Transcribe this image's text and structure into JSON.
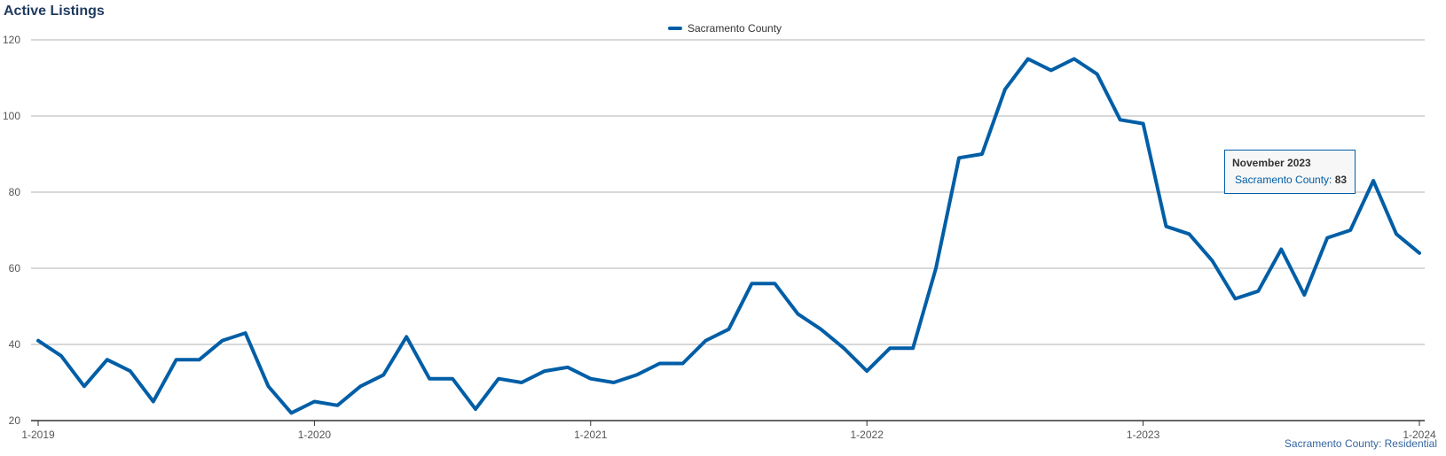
{
  "chart_data": {
    "type": "line",
    "title": "Active Listings",
    "xlabel": "",
    "ylabel": "",
    "ylim": [
      20,
      120
    ],
    "yticks": [
      20,
      40,
      60,
      80,
      100,
      120
    ],
    "x_tick_labels": [
      "1-2019",
      "1-2020",
      "1-2021",
      "1-2022",
      "1-2023",
      "1-2024"
    ],
    "grid": true,
    "legend_position": "top-center",
    "x": [
      "1-2019",
      "2-2019",
      "3-2019",
      "4-2019",
      "5-2019",
      "6-2019",
      "7-2019",
      "8-2019",
      "9-2019",
      "10-2019",
      "11-2019",
      "12-2019",
      "1-2020",
      "2-2020",
      "3-2020",
      "4-2020",
      "5-2020",
      "6-2020",
      "7-2020",
      "8-2020",
      "9-2020",
      "10-2020",
      "11-2020",
      "12-2020",
      "1-2021",
      "2-2021",
      "3-2021",
      "4-2021",
      "5-2021",
      "6-2021",
      "7-2021",
      "8-2021",
      "9-2021",
      "10-2021",
      "11-2021",
      "12-2021",
      "1-2022",
      "2-2022",
      "3-2022",
      "4-2022",
      "5-2022",
      "6-2022",
      "7-2022",
      "8-2022",
      "9-2022",
      "10-2022",
      "11-2022",
      "12-2022",
      "1-2023",
      "2-2023",
      "3-2023",
      "4-2023",
      "5-2023",
      "6-2023",
      "7-2023",
      "8-2023",
      "9-2023",
      "10-2023",
      "11-2023",
      "12-2023",
      "1-2024"
    ],
    "series": [
      {
        "name": "Sacramento County",
        "color": "#005ea6",
        "values": [
          41,
          37,
          29,
          36,
          33,
          25,
          36,
          36,
          41,
          43,
          29,
          22,
          25,
          24,
          29,
          32,
          42,
          31,
          31,
          23,
          31,
          30,
          33,
          34,
          31,
          30,
          32,
          35,
          35,
          41,
          44,
          56,
          56,
          48,
          44,
          39,
          33,
          39,
          39,
          60,
          89,
          90,
          107,
          115,
          112,
          115,
          111,
          99,
          98,
          71,
          69,
          62,
          52,
          54,
          65,
          53,
          68,
          70,
          83,
          69,
          64
        ]
      }
    ],
    "tooltip": {
      "title": "November 2023",
      "series_label": "Sacramento County:",
      "value": "83"
    },
    "credit": "Sacramento County: Residential"
  }
}
